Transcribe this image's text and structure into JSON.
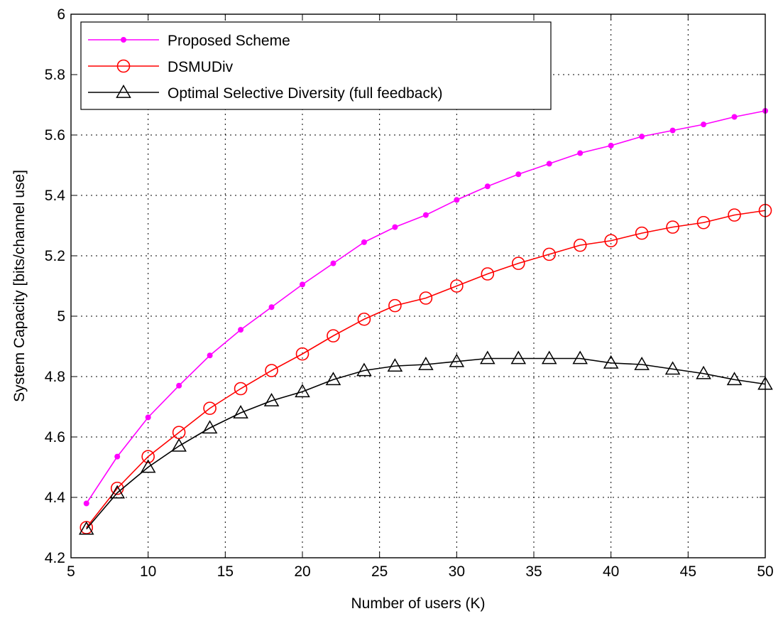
{
  "chart_data": {
    "type": "line",
    "title": "",
    "xlabel": "Number of users (K)",
    "ylabel": "System Capacity [bits/channel use]",
    "xlim": [
      5,
      50
    ],
    "ylim": [
      4.2,
      6
    ],
    "xticks": [
      5,
      10,
      15,
      20,
      25,
      30,
      35,
      40,
      45,
      50
    ],
    "yticks": [
      4.2,
      4.4,
      4.6,
      4.8,
      5,
      5.2,
      5.4,
      5.6,
      5.8,
      6
    ],
    "xtick_labels": [
      "5",
      "10",
      "15",
      "20",
      "25",
      "30",
      "35",
      "40",
      "45",
      "50"
    ],
    "ytick_labels": [
      "4.2",
      "4.4",
      "4.6",
      "4.8",
      "5",
      "5.2",
      "5.4",
      "5.6",
      "5.8",
      "6"
    ],
    "grid": true,
    "legend_position": "top-left",
    "x": [
      6,
      8,
      10,
      12,
      14,
      16,
      18,
      20,
      22,
      24,
      26,
      28,
      30,
      32,
      34,
      36,
      38,
      40,
      42,
      44,
      46,
      48,
      50
    ],
    "series": [
      {
        "name": "Proposed Scheme",
        "color": "#ff00ff",
        "marker": "dot",
        "values": [
          4.38,
          4.535,
          4.665,
          4.77,
          4.87,
          4.955,
          5.03,
          5.105,
          5.175,
          5.245,
          5.295,
          5.335,
          5.385,
          5.43,
          5.47,
          5.505,
          5.54,
          5.565,
          5.595,
          5.615,
          5.635,
          5.66,
          5.68
        ]
      },
      {
        "name": "DSMUDiv",
        "color": "#ff0000",
        "marker": "circle",
        "values": [
          4.3,
          4.43,
          4.535,
          4.615,
          4.695,
          4.76,
          4.82,
          4.875,
          4.935,
          4.99,
          5.035,
          5.06,
          5.1,
          5.14,
          5.175,
          5.205,
          5.235,
          5.25,
          5.275,
          5.295,
          5.31,
          5.335,
          5.35
        ]
      },
      {
        "name": "Optimal Selective Diversity (full feedback)",
        "color": "#000000",
        "marker": "triangle",
        "values": [
          4.295,
          4.415,
          4.5,
          4.57,
          4.63,
          4.68,
          4.72,
          4.75,
          4.79,
          4.82,
          4.835,
          4.84,
          4.85,
          4.86,
          4.86,
          4.86,
          4.86,
          4.845,
          4.84,
          4.825,
          4.81,
          4.79,
          4.775
        ]
      }
    ]
  }
}
